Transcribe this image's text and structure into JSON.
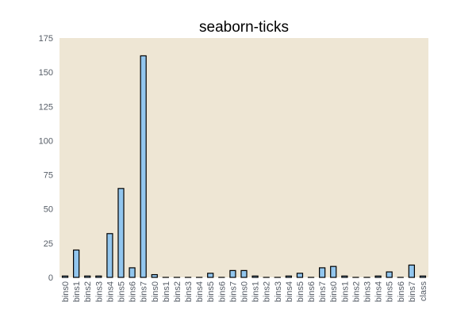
{
  "chart_data": {
    "type": "bar",
    "title": "seaborn-ticks",
    "xlabel": "",
    "ylabel": "",
    "ylim": [
      0,
      175
    ],
    "yticks": [
      0,
      25,
      50,
      75,
      100,
      125,
      150,
      175
    ],
    "grid": false,
    "categories": [
      "bins0",
      "bins1",
      "bins2",
      "bins3",
      "bins4",
      "bins5",
      "bins6",
      "bins7",
      "bins0",
      "bins1",
      "bins2",
      "bins3",
      "bins4",
      "bins5",
      "bins6",
      "bins7",
      "bins0",
      "bins1",
      "bins2",
      "bins3",
      "bins4",
      "bins5",
      "bins6",
      "bins7",
      "bins0",
      "bins1",
      "bins2",
      "bins3",
      "bins4",
      "bins5",
      "bins6",
      "bins7",
      "class"
    ],
    "values": [
      1,
      20,
      1,
      1,
      32,
      65,
      7,
      162,
      2,
      0,
      0,
      0,
      0,
      3,
      0,
      5,
      5,
      1,
      0,
      0,
      1,
      3,
      0,
      7,
      8,
      1,
      0,
      0,
      1,
      4,
      0,
      9,
      1
    ],
    "colors": {
      "plot_background": "#EEE6D4",
      "bar_fill": "#92C6EE",
      "bar_edge": "#000000",
      "tick_label": "#555C66"
    }
  }
}
